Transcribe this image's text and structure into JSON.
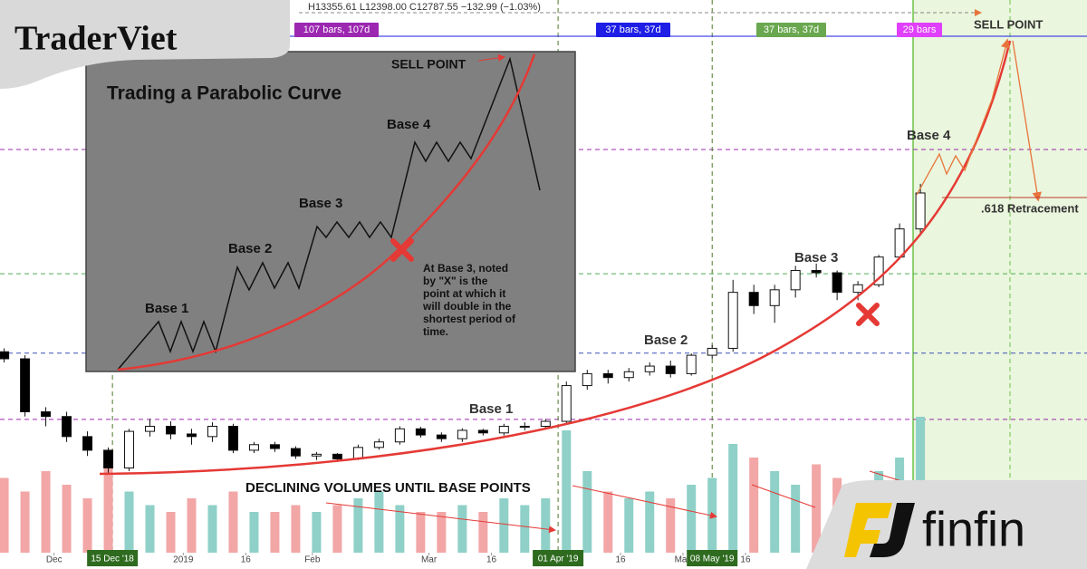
{
  "chart_data": {
    "type": "candlestick",
    "header": "H13355.61  L12398.00  C12787.55  −132.99 (−1.03%)",
    "log_scale": true,
    "xlim": [
      "2018-11-18",
      "2019-08-06"
    ],
    "ylim": [
      2130,
      33500
    ],
    "vlim": [
      0,
      100
    ],
    "up_color": "#26a69a",
    "down_color": "#000000",
    "volume_up_color": "#8fd0c8",
    "volume_down_color": "#f2a6a6",
    "x": [
      "2018-11-19",
      "2018-11-24",
      "2018-11-29",
      "2018-12-04",
      "2018-12-09",
      "2018-12-14",
      "2018-12-19",
      "2018-12-24",
      "2018-12-29",
      "2019-01-03",
      "2019-01-08",
      "2019-01-13",
      "2019-01-18",
      "2019-01-23",
      "2019-01-28",
      "2019-02-02",
      "2019-02-07",
      "2019-02-12",
      "2019-02-17",
      "2019-02-22",
      "2019-02-27",
      "2019-03-04",
      "2019-03-09",
      "2019-03-14",
      "2019-03-19",
      "2019-03-24",
      "2019-03-29",
      "2019-04-03",
      "2019-04-08",
      "2019-04-13",
      "2019-04-18",
      "2019-04-23",
      "2019-04-28",
      "2019-05-03",
      "2019-05-08",
      "2019-05-13",
      "2019-05-18",
      "2019-05-23",
      "2019-05-28",
      "2019-06-02",
      "2019-06-07",
      "2019-06-12",
      "2019-06-17",
      "2019-06-22",
      "2019-06-27"
    ],
    "open": [
      5800,
      5600,
      4300,
      4200,
      3800,
      3550,
      3250,
      3900,
      4000,
      3850,
      3800,
      4000,
      3550,
      3650,
      3580,
      3450,
      3480,
      3400,
      3600,
      3700,
      3950,
      3830,
      3760,
      3920,
      3870,
      4000,
      4000,
      4100,
      4900,
      5200,
      5100,
      5250,
      5400,
      5200,
      5700,
      5900,
      7800,
      7300,
      7900,
      8700,
      8600,
      7800,
      8100,
      9300,
      10700
    ],
    "high": [
      5900,
      5700,
      4400,
      4300,
      3900,
      3600,
      3950,
      4150,
      4100,
      3950,
      4080,
      4050,
      3700,
      3700,
      3620,
      3520,
      3500,
      3650,
      3760,
      4000,
      3990,
      3880,
      3960,
      3950,
      4050,
      4080,
      4150,
      5000,
      5300,
      5300,
      5350,
      5500,
      5550,
      5750,
      6000,
      8300,
      8100,
      8100,
      8900,
      9000,
      8700,
      8250,
      9400,
      11000,
      13400
    ],
    "low": [
      5500,
      4200,
      4000,
      3700,
      3450,
      3150,
      3200,
      3800,
      3750,
      3650,
      3700,
      3500,
      3500,
      3520,
      3400,
      3380,
      3350,
      3380,
      3560,
      3650,
      3780,
      3700,
      3700,
      3820,
      3820,
      3920,
      3950,
      4050,
      4800,
      4950,
      5000,
      5150,
      5100,
      5150,
      5600,
      5800,
      7000,
      6700,
      7600,
      8400,
      7500,
      7500,
      8000,
      9200,
      10500
    ],
    "close": [
      5600,
      4300,
      4200,
      3800,
      3550,
      3250,
      3900,
      4000,
      3850,
      3800,
      4000,
      3550,
      3650,
      3580,
      3450,
      3480,
      3400,
      3600,
      3700,
      3950,
      3830,
      3760,
      3920,
      3870,
      4000,
      4000,
      4100,
      4900,
      5200,
      5100,
      5250,
      5400,
      5200,
      5700,
      5900,
      7800,
      7300,
      7900,
      8700,
      8600,
      7800,
      8100,
      9300,
      10700,
      12800
    ],
    "volume": [
      55,
      45,
      60,
      50,
      40,
      65,
      45,
      35,
      30,
      40,
      35,
      45,
      30,
      30,
      35,
      30,
      35,
      40,
      45,
      35,
      30,
      30,
      35,
      30,
      40,
      35,
      40,
      90,
      60,
      45,
      40,
      45,
      40,
      50,
      55,
      80,
      70,
      60,
      50,
      65,
      55,
      45,
      60,
      70,
      100
    ],
    "xticks": [
      {
        "value": "2018-12-01",
        "label": "Dec"
      },
      {
        "value": "2019-01-01",
        "label": "2019"
      },
      {
        "value": "2019-01-16",
        "label": "16"
      },
      {
        "value": "2019-02-01",
        "label": "Feb"
      },
      {
        "value": "2019-03-01",
        "label": "Mar"
      },
      {
        "value": "2019-03-16",
        "label": "16"
      },
      {
        "value": "2019-04-16",
        "label": "16"
      },
      {
        "value": "2019-05-01",
        "label": "May"
      },
      {
        "value": "2019-05-16",
        "label": "16"
      }
    ],
    "date_markers": [
      {
        "value": "2018-12-15",
        "label": "15 Dec '18"
      },
      {
        "value": "2019-04-01",
        "label": "01 Apr '19"
      },
      {
        "value": "2019-05-08",
        "label": "08 May '19"
      }
    ],
    "levels": [
      {
        "value": 15900,
        "color": "#9c27b0"
      },
      {
        "value": 8560,
        "color": "#4caf50"
      },
      {
        "value": 5760,
        "color": "#3f51b5"
      },
      {
        "value": 4140,
        "color": "#9c27b0"
      }
    ],
    "range_labels": [
      {
        "label": "107 bars, 107d",
        "color": "#9c27b0"
      },
      {
        "label": "37 bars, 37d",
        "color": "#1e1ee6"
      },
      {
        "label": "37 bars, 37d",
        "color": "#6aa84f"
      },
      {
        "label": "29 bars",
        "color": "#e040fb"
      }
    ],
    "annotations": [
      "SELL POINT",
      "Base 4",
      ".618 Retracement",
      "Base 3",
      "Base 2",
      "Base 1",
      "DECLINING VOLUMES UNTIL BASE POINTS"
    ],
    "inset": {
      "title": "Trading a Parabolic Curve",
      "sell": "SELL POINT",
      "bases": [
        "Base 1",
        "Base 2",
        "Base 3",
        "Base 4"
      ],
      "note": [
        "At Base 3, noted",
        "by \"X\" is the",
        "point at which it",
        "will double in the",
        "shortest period of",
        "time."
      ]
    }
  },
  "brand": {
    "left": "TraderViet",
    "right": "finfin"
  }
}
